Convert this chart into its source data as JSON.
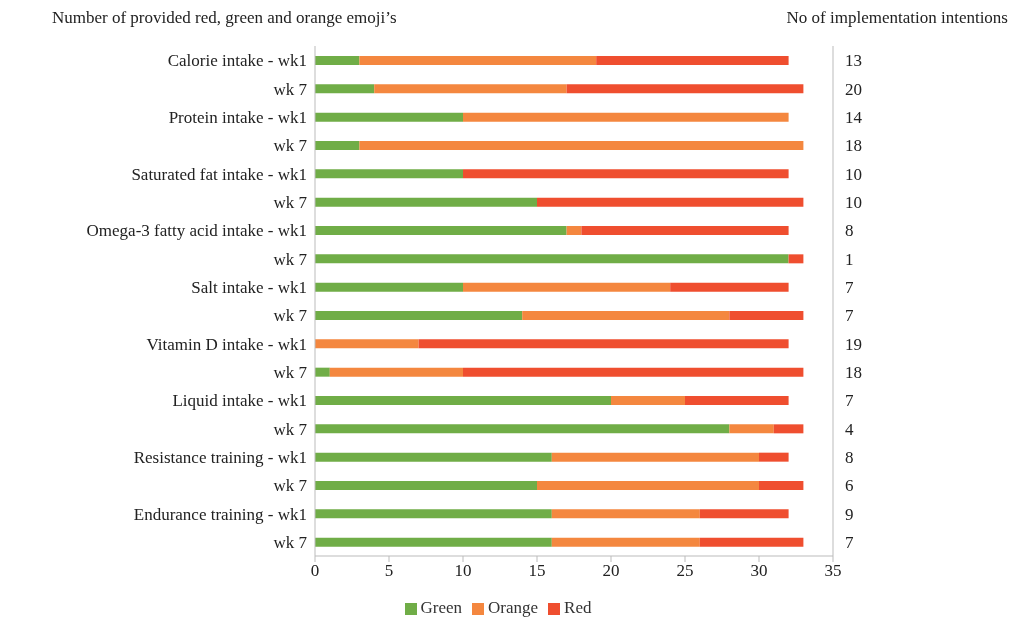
{
  "chart_data": {
    "type": "bar",
    "orientation": "horizontal",
    "stacked": true,
    "title": "Number of provided red, green and orange emoji’s",
    "y2label": "No of implementation intentions",
    "categories": [
      "Calorie intake - wk1",
      "wk 7",
      "Protein intake - wk1",
      "wk 7",
      "Saturated fat intake - wk1",
      "wk 7",
      "Omega-3 fatty acid intake - wk1",
      "wk 7",
      "Salt intake - wk1",
      "wk 7",
      "Vitamin D intake - wk1",
      "wk 7",
      "Liquid intake - wk1",
      "wk 7",
      "Resistance training - wk1",
      "wk 7",
      "Endurance training - wk1",
      "wk 7"
    ],
    "y2_categories": [
      "13",
      "20",
      "14",
      "18",
      "10",
      "10",
      "8",
      "1",
      "7",
      "7",
      "19",
      "18",
      "7",
      "4",
      "8",
      "6",
      "9",
      "7"
    ],
    "series": [
      {
        "name": "Green",
        "color": "#70ad47",
        "values": [
          3,
          4,
          10,
          3,
          10,
          15,
          17,
          32,
          10,
          14,
          0,
          1,
          20,
          28,
          16,
          15,
          16,
          16
        ]
      },
      {
        "name": "Orange",
        "color": "#f4873f",
        "values": [
          16,
          13,
          22,
          30,
          0,
          0,
          1,
          0,
          14,
          14,
          7,
          9,
          5,
          3,
          14,
          15,
          10,
          10
        ]
      },
      {
        "name": "Red",
        "color": "#ef4e2f",
        "values": [
          13,
          16,
          0,
          0,
          22,
          18,
          14,
          1,
          8,
          5,
          25,
          23,
          7,
          2,
          2,
          3,
          6,
          7
        ]
      }
    ],
    "xlim": [
      0,
      35
    ],
    "xticks": [
      0,
      5,
      10,
      15,
      20,
      25,
      30,
      35
    ],
    "legend": "bottom"
  }
}
